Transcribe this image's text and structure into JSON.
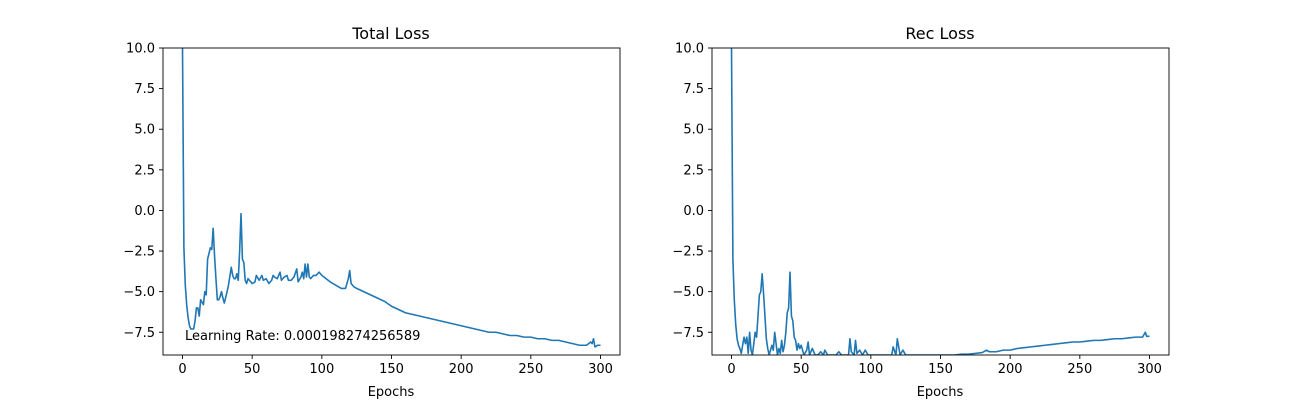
{
  "chart_data": [
    {
      "type": "line",
      "title": "Total Loss",
      "xlabel": "Epochs",
      "ylabel": "",
      "xlim": [
        -14,
        314
      ],
      "ylim": [
        -8.9,
        10.0
      ],
      "xticks": [
        0,
        50,
        100,
        150,
        200,
        250,
        300
      ],
      "yticks": [
        -7.5,
        -5.0,
        -2.5,
        0.0,
        2.5,
        5.0,
        7.5,
        10.0
      ],
      "xtick_labels": [
        "0",
        "50",
        "100",
        "150",
        "200",
        "250",
        "300"
      ],
      "ytick_labels": [
        "−7.5",
        "−5.0",
        "−2.5",
        "0.0",
        "2.5",
        "5.0",
        "7.5",
        "10.0"
      ],
      "grid": false,
      "annotation": "Learning Rate: 0.000198274256589",
      "line_color": "#1f77b4",
      "series": [
        {
          "name": "",
          "points": [
            [
              0,
              10.0
            ],
            [
              1,
              -2.3
            ],
            [
              2,
              -4.6
            ],
            [
              3,
              -5.8
            ],
            [
              4,
              -6.6
            ],
            [
              5,
              -7.1
            ],
            [
              6,
              -7.3
            ],
            [
              8,
              -7.3
            ],
            [
              9,
              -6.8
            ],
            [
              10,
              -6.0
            ],
            [
              11,
              -6.0
            ],
            [
              12,
              -6.5
            ],
            [
              13,
              -5.5
            ],
            [
              15,
              -5.8
            ],
            [
              16,
              -5.0
            ],
            [
              17,
              -5.2
            ],
            [
              18,
              -3.0
            ],
            [
              20,
              -2.3
            ],
            [
              21,
              -2.4
            ],
            [
              22,
              -1.1
            ],
            [
              23,
              -2.8
            ],
            [
              24,
              -4.2
            ],
            [
              25,
              -5.5
            ],
            [
              26,
              -5.5
            ],
            [
              27,
              -5.3
            ],
            [
              28,
              -5.0
            ],
            [
              29,
              -5.4
            ],
            [
              30,
              -5.7
            ],
            [
              32,
              -5.0
            ],
            [
              33,
              -4.6
            ],
            [
              35,
              -3.5
            ],
            [
              36,
              -4.0
            ],
            [
              37,
              -4.2
            ],
            [
              38,
              -4.2
            ],
            [
              39,
              -3.9
            ],
            [
              40,
              -4.3
            ],
            [
              41,
              -2.5
            ],
            [
              42,
              -0.2
            ],
            [
              43,
              -3.0
            ],
            [
              44,
              -3.2
            ],
            [
              45,
              -4.3
            ],
            [
              46,
              -4.5
            ],
            [
              47,
              -4.2
            ],
            [
              50,
              -4.5
            ],
            [
              52,
              -4.4
            ],
            [
              53,
              -4.0
            ],
            [
              55,
              -4.3
            ],
            [
              57,
              -4.0
            ],
            [
              58,
              -4.3
            ],
            [
              60,
              -4.2
            ],
            [
              62,
              -4.5
            ],
            [
              64,
              -4.3
            ],
            [
              65,
              -4.0
            ],
            [
              66,
              -4.1
            ],
            [
              68,
              -4.2
            ],
            [
              70,
              -3.8
            ],
            [
              71,
              -4.3
            ],
            [
              73,
              -4.1
            ],
            [
              75,
              -4.0
            ],
            [
              76,
              -4.3
            ],
            [
              78,
              -4.3
            ],
            [
              80,
              -4.1
            ],
            [
              82,
              -3.6
            ],
            [
              83,
              -4.4
            ],
            [
              85,
              -4.1
            ],
            [
              86,
              -3.8
            ],
            [
              87,
              -4.2
            ],
            [
              88,
              -3.3
            ],
            [
              89,
              -4.1
            ],
            [
              90,
              -3.3
            ],
            [
              91,
              -4.1
            ],
            [
              92,
              -4.2
            ],
            [
              94,
              -4.0
            ],
            [
              96,
              -4.0
            ],
            [
              98,
              -3.8
            ],
            [
              100,
              -4.0
            ],
            [
              103,
              -4.2
            ],
            [
              106,
              -4.4
            ],
            [
              110,
              -4.6
            ],
            [
              114,
              -4.8
            ],
            [
              117,
              -4.8
            ],
            [
              119,
              -4.2
            ],
            [
              120,
              -3.7
            ],
            [
              121,
              -4.5
            ],
            [
              123,
              -4.7
            ],
            [
              125,
              -4.8
            ],
            [
              130,
              -5.0
            ],
            [
              135,
              -5.2
            ],
            [
              140,
              -5.4
            ],
            [
              145,
              -5.6
            ],
            [
              150,
              -5.9
            ],
            [
              155,
              -6.1
            ],
            [
              160,
              -6.3
            ],
            [
              165,
              -6.4
            ],
            [
              170,
              -6.5
            ],
            [
              175,
              -6.6
            ],
            [
              180,
              -6.7
            ],
            [
              185,
              -6.8
            ],
            [
              190,
              -6.9
            ],
            [
              195,
              -7.0
            ],
            [
              200,
              -7.1
            ],
            [
              205,
              -7.2
            ],
            [
              210,
              -7.3
            ],
            [
              215,
              -7.4
            ],
            [
              220,
              -7.5
            ],
            [
              225,
              -7.5
            ],
            [
              230,
              -7.6
            ],
            [
              235,
              -7.7
            ],
            [
              240,
              -7.7
            ],
            [
              245,
              -7.8
            ],
            [
              250,
              -7.8
            ],
            [
              255,
              -7.9
            ],
            [
              260,
              -7.9
            ],
            [
              265,
              -8.0
            ],
            [
              270,
              -8.0
            ],
            [
              275,
              -8.1
            ],
            [
              280,
              -8.2
            ],
            [
              285,
              -8.3
            ],
            [
              290,
              -8.3
            ],
            [
              293,
              -8.1
            ],
            [
              294,
              -8.2
            ],
            [
              295,
              -7.9
            ],
            [
              296,
              -8.4
            ],
            [
              298,
              -8.3
            ],
            [
              300,
              -8.3
            ]
          ]
        }
      ]
    },
    {
      "type": "line",
      "title": "Rec Loss",
      "xlabel": "Epochs",
      "ylabel": "",
      "xlim": [
        -14,
        314
      ],
      "ylim": [
        -8.9,
        10.0
      ],
      "xticks": [
        0,
        50,
        100,
        150,
        200,
        250,
        300
      ],
      "yticks": [
        -7.5,
        -5.0,
        -2.5,
        0.0,
        2.5,
        5.0,
        7.5,
        10.0
      ],
      "xtick_labels": [
        "0",
        "50",
        "100",
        "150",
        "200",
        "250",
        "300"
      ],
      "ytick_labels": [
        "−7.5",
        "−5.0",
        "−2.5",
        "0.0",
        "2.5",
        "5.0",
        "7.5",
        "10.0"
      ],
      "grid": false,
      "line_color": "#1f77b4",
      "series": [
        {
          "name": "",
          "points": [
            [
              0,
              10.0
            ],
            [
              1,
              -3.0
            ],
            [
              2,
              -5.5
            ],
            [
              3,
              -7.0
            ],
            [
              4,
              -7.9
            ],
            [
              5,
              -8.3
            ],
            [
              6,
              -8.5
            ],
            [
              7,
              -8.8
            ],
            [
              8,
              -8.3
            ],
            [
              9,
              -7.8
            ],
            [
              10,
              -8.2
            ],
            [
              11,
              -7.8
            ],
            [
              12,
              -8.8
            ],
            [
              13,
              -7.5
            ],
            [
              14,
              -8.6
            ],
            [
              15,
              -8.9
            ],
            [
              17,
              -7.5
            ],
            [
              18,
              -7.8
            ],
            [
              19,
              -6.5
            ],
            [
              20,
              -5.2
            ],
            [
              21,
              -5.0
            ],
            [
              22,
              -3.9
            ],
            [
              23,
              -5.1
            ],
            [
              24,
              -6.5
            ],
            [
              25,
              -7.9
            ],
            [
              26,
              -8.5
            ],
            [
              27,
              -8.9
            ],
            [
              28,
              -8.6
            ],
            [
              29,
              -8.3
            ],
            [
              30,
              -8.6
            ],
            [
              31,
              -7.5
            ],
            [
              32,
              -8.2
            ],
            [
              33,
              -8.9
            ],
            [
              34,
              -8.5
            ],
            [
              35,
              -8.8
            ],
            [
              36,
              -8.0
            ],
            [
              37,
              -8.7
            ],
            [
              38,
              -8.3
            ],
            [
              39,
              -7.5
            ],
            [
              40,
              -6.3
            ],
            [
              41,
              -6.0
            ],
            [
              42,
              -3.8
            ],
            [
              43,
              -6.5
            ],
            [
              44,
              -6.8
            ],
            [
              45,
              -7.8
            ],
            [
              46,
              -8.0
            ],
            [
              47,
              -8.6
            ],
            [
              48,
              -8.2
            ],
            [
              49,
              -8.5
            ],
            [
              50,
              -8.3
            ],
            [
              52,
              -8.9
            ],
            [
              54,
              -8.6
            ],
            [
              55,
              -8.1
            ],
            [
              56,
              -8.9
            ],
            [
              58,
              -8.5
            ],
            [
              60,
              -8.9
            ],
            [
              62,
              -8.9
            ],
            [
              64,
              -8.7
            ],
            [
              66,
              -8.9
            ],
            [
              67,
              -8.6
            ],
            [
              69,
              -8.9
            ],
            [
              72,
              -8.9
            ],
            [
              75,
              -8.9
            ],
            [
              77,
              -8.7
            ],
            [
              79,
              -8.9
            ],
            [
              82,
              -8.9
            ],
            [
              84,
              -8.9
            ],
            [
              85,
              -7.9
            ],
            [
              86,
              -8.7
            ],
            [
              88,
              -8.9
            ],
            [
              89,
              -8.0
            ],
            [
              90,
              -8.8
            ],
            [
              92,
              -8.6
            ],
            [
              94,
              -8.9
            ],
            [
              96,
              -8.6
            ],
            [
              98,
              -8.9
            ],
            [
              100,
              -8.9
            ],
            [
              103,
              -8.9
            ],
            [
              106,
              -8.9
            ],
            [
              109,
              -8.9
            ],
            [
              112,
              -8.9
            ],
            [
              115,
              -8.9
            ],
            [
              116,
              -8.4
            ],
            [
              118,
              -8.9
            ],
            [
              119,
              -7.9
            ],
            [
              120,
              -8.4
            ],
            [
              121,
              -8.9
            ],
            [
              123,
              -8.6
            ],
            [
              125,
              -8.9
            ],
            [
              128,
              -8.9
            ],
            [
              130,
              -8.9
            ],
            [
              135,
              -8.9
            ],
            [
              140,
              -8.9
            ],
            [
              145,
              -8.9
            ],
            [
              150,
              -8.9
            ],
            [
              155,
              -8.9
            ],
            [
              160,
              -8.9
            ],
            [
              165,
              -8.85
            ],
            [
              170,
              -8.85
            ],
            [
              175,
              -8.8
            ],
            [
              180,
              -8.75
            ],
            [
              183,
              -8.6
            ],
            [
              185,
              -8.7
            ],
            [
              190,
              -8.7
            ],
            [
              195,
              -8.6
            ],
            [
              200,
              -8.6
            ],
            [
              205,
              -8.5
            ],
            [
              210,
              -8.45
            ],
            [
              215,
              -8.4
            ],
            [
              220,
              -8.35
            ],
            [
              225,
              -8.3
            ],
            [
              230,
              -8.25
            ],
            [
              235,
              -8.2
            ],
            [
              240,
              -8.15
            ],
            [
              245,
              -8.1
            ],
            [
              250,
              -8.1
            ],
            [
              255,
              -8.05
            ],
            [
              260,
              -8.0
            ],
            [
              265,
              -8.0
            ],
            [
              270,
              -7.95
            ],
            [
              275,
              -7.9
            ],
            [
              280,
              -7.9
            ],
            [
              285,
              -7.85
            ],
            [
              290,
              -7.8
            ],
            [
              295,
              -7.8
            ],
            [
              297,
              -7.5
            ],
            [
              298,
              -7.75
            ],
            [
              300,
              -7.75
            ]
          ]
        }
      ]
    }
  ]
}
